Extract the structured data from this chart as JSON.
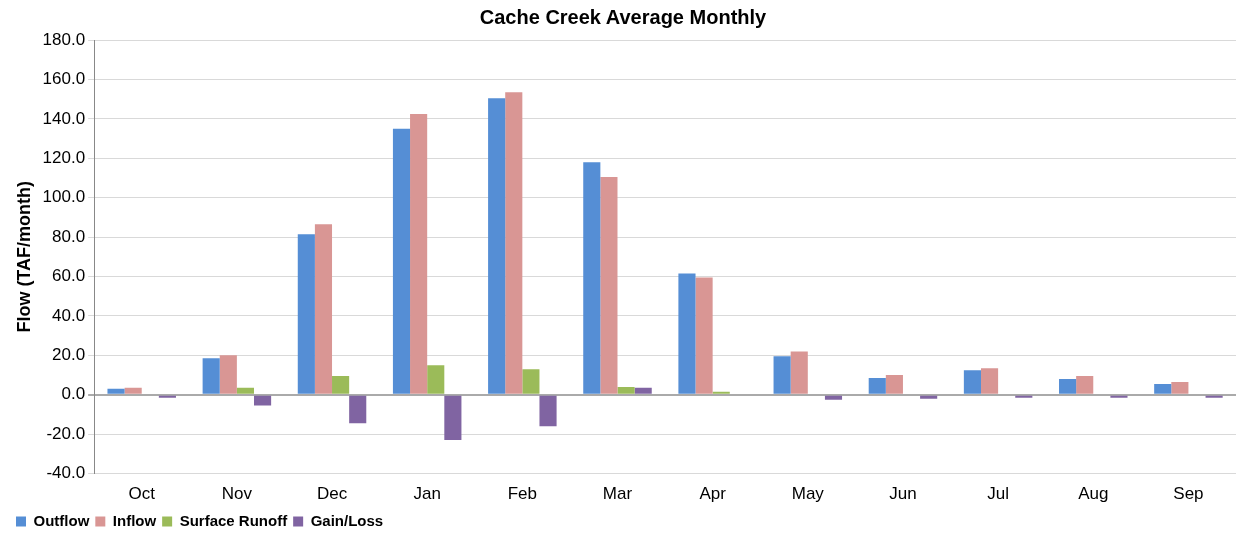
{
  "chart_data": {
    "type": "bar",
    "title": "Cache Creek Average Monthly",
    "ylabel": "Flow (TAF/month)",
    "categories": [
      "Oct",
      "Nov",
      "Dec",
      "Jan",
      "Feb",
      "Mar",
      "Apr",
      "May",
      "Jun",
      "Jul",
      "Aug",
      "Sep"
    ],
    "series": [
      {
        "name": "Outflow",
        "color": "#558ed5",
        "values": [
          3,
          18.5,
          81.5,
          135,
          150.5,
          118,
          61.5,
          19.5,
          8.5,
          12.5,
          8,
          5.5
        ]
      },
      {
        "name": "Inflow",
        "color": "#d99694",
        "values": [
          3.5,
          20,
          86.5,
          142.5,
          153.5,
          110.5,
          59.5,
          22,
          10,
          13.5,
          9.5,
          6.5
        ]
      },
      {
        "name": "Surface Runoff",
        "color": "#9bbb59",
        "values": [
          0.5,
          3.5,
          9.5,
          15,
          13,
          4,
          1.5,
          0.5,
          0.5,
          0.5,
          0,
          0
        ]
      },
      {
        "name": "Gain/Loss",
        "color": "#8064a2",
        "values": [
          -1.5,
          -5.5,
          -14.5,
          -23,
          -16,
          3.5,
          0,
          -2.5,
          -2,
          -1.5,
          -1.5,
          -1.5
        ]
      }
    ],
    "ylim": [
      -40,
      180
    ],
    "yticks": [
      {
        "value": -40,
        "label": "-40.0"
      },
      {
        "value": -20,
        "label": "-20.0"
      },
      {
        "value": 0,
        "label": "0.0"
      },
      {
        "value": 20,
        "label": "20.0"
      },
      {
        "value": 40,
        "label": "40.0"
      },
      {
        "value": 60,
        "label": "60.0"
      },
      {
        "value": 80,
        "label": "80.0"
      },
      {
        "value": 100,
        "label": "100.0"
      },
      {
        "value": 120,
        "label": "120.0"
      },
      {
        "value": 140,
        "label": "140.0"
      },
      {
        "value": 160,
        "label": "160.0"
      },
      {
        "value": 180,
        "label": "180.0"
      }
    ],
    "grid": "y",
    "legend": "bottom left"
  }
}
